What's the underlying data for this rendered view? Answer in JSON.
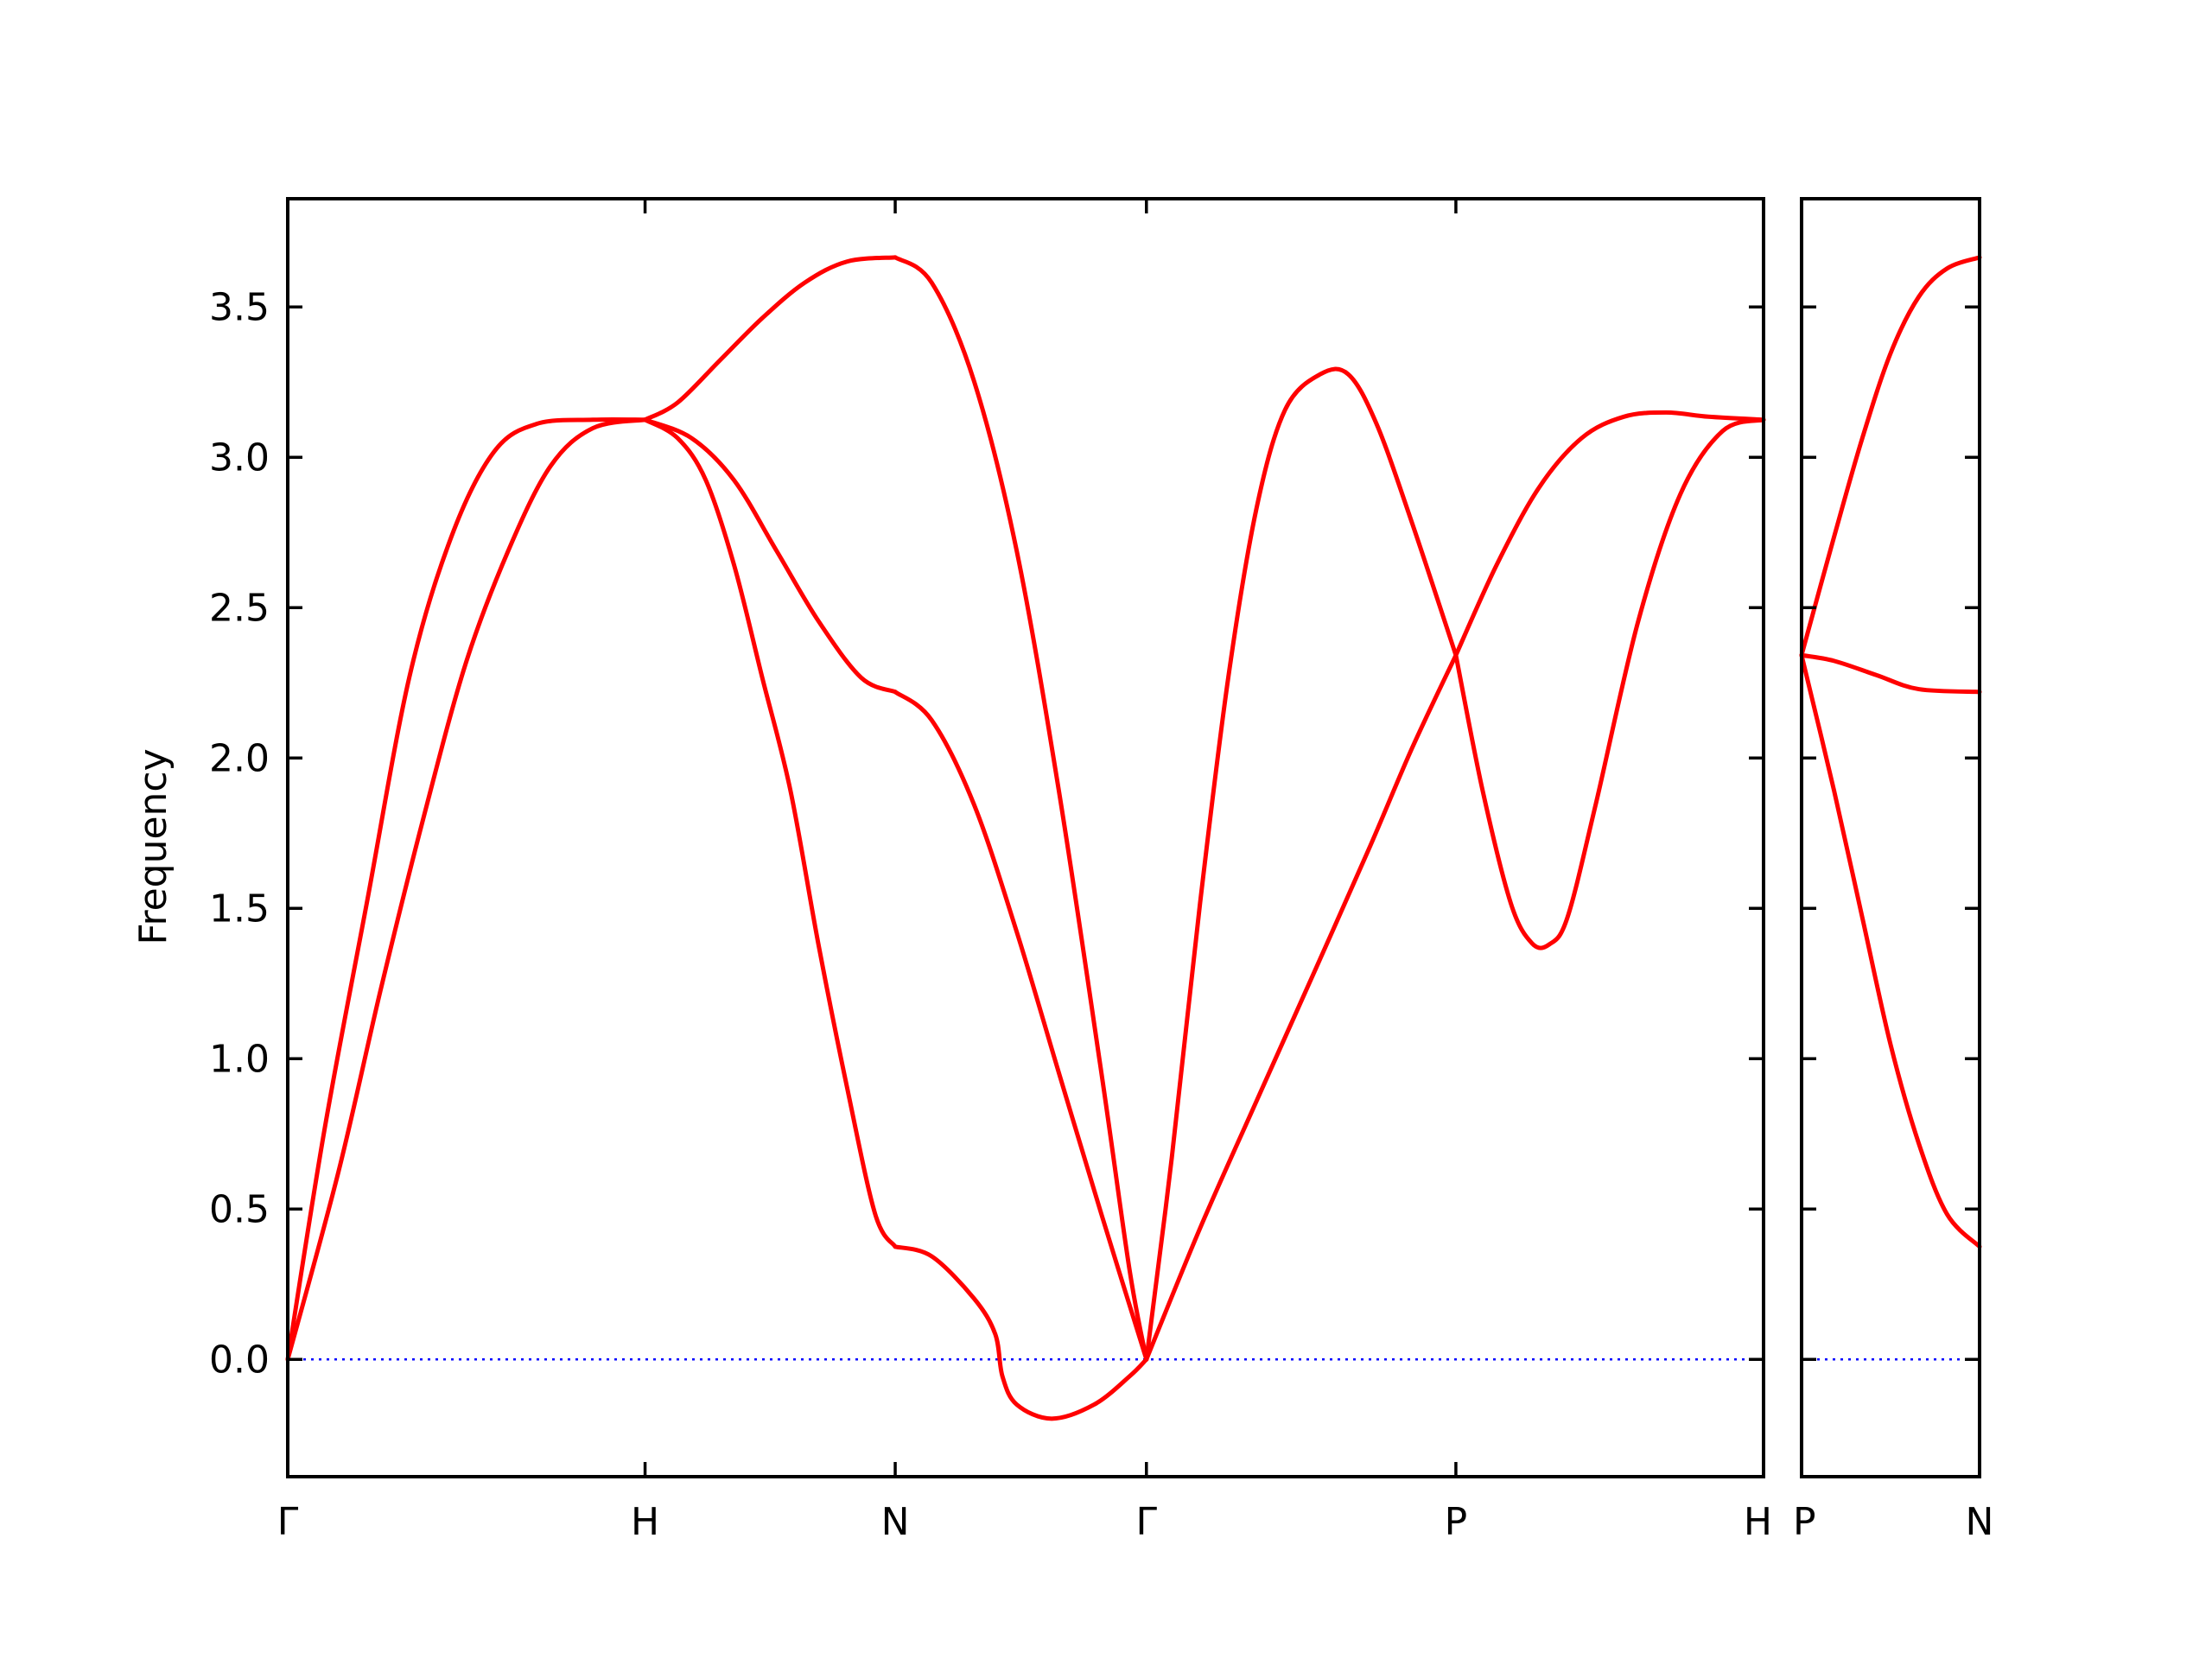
{
  "chart_data": {
    "type": "line",
    "ylabel": "Frequency",
    "ylim": [
      -0.39,
      3.86
    ],
    "yticks": [
      0.0,
      0.5,
      1.0,
      1.5,
      2.0,
      2.5,
      3.0,
      3.5
    ],
    "ytick_labels": [
      "0.0",
      "0.5",
      "1.0",
      "1.5",
      "2.0",
      "2.5",
      "3.0",
      "3.5"
    ],
    "zero_line_color": "#0000ff",
    "band_color": "#ff0000",
    "grid": false,
    "panels": [
      {
        "xlim": [
          0,
          4.13
        ],
        "xticks": [
          0,
          1.0,
          1.7,
          2.403,
          3.269,
          4.13
        ],
        "xtick_labels": [
          "Γ",
          "H",
          "N",
          "Γ",
          "P",
          "H"
        ],
        "segments": [
          [
            [
              0,
              0
            ],
            [
              0.103,
              0.765
            ],
            [
              0.221,
              1.516
            ],
            [
              0.34,
              2.267
            ],
            [
              0.458,
              2.736
            ],
            [
              0.577,
              3.018
            ],
            [
              0.696,
              3.111
            ],
            [
              0.854,
              3.125
            ],
            [
              1.0,
              3.125
            ]
          ],
          [
            [
              0,
              0
            ],
            [
              0.142,
              0.624
            ],
            [
              0.261,
              1.234
            ],
            [
              0.379,
              1.797
            ],
            [
              0.498,
              2.314
            ],
            [
              0.617,
              2.689
            ],
            [
              0.735,
              2.97
            ],
            [
              0.854,
              3.097
            ],
            [
              1.0,
              3.125
            ]
          ],
          [
            [
              1.0,
              3.125
            ],
            [
              1.091,
              3.182
            ],
            [
              1.209,
              3.322
            ],
            [
              1.328,
              3.463
            ],
            [
              1.447,
              3.581
            ],
            [
              1.565,
              3.651
            ],
            [
              1.7,
              3.665
            ]
          ],
          [
            [
              1.0,
              3.125
            ],
            [
              1.13,
              3.064
            ],
            [
              1.249,
              2.924
            ],
            [
              1.368,
              2.689
            ],
            [
              1.486,
              2.454
            ],
            [
              1.605,
              2.267
            ],
            [
              1.7,
              2.22
            ]
          ],
          [
            [
              1.0,
              3.125
            ],
            [
              1.091,
              3.064
            ],
            [
              1.17,
              2.924
            ],
            [
              1.249,
              2.642
            ],
            [
              1.328,
              2.267
            ],
            [
              1.407,
              1.891
            ],
            [
              1.486,
              1.375
            ],
            [
              1.565,
              0.906
            ],
            [
              1.644,
              0.483
            ],
            [
              1.7,
              0.375
            ]
          ],
          [
            [
              1.7,
              3.665
            ],
            [
              1.802,
              3.581
            ],
            [
              1.921,
              3.252
            ],
            [
              2.04,
              2.689
            ],
            [
              2.158,
              1.891
            ],
            [
              2.277,
              0.953
            ],
            [
              2.356,
              0.296
            ],
            [
              2.403,
              0
            ]
          ],
          [
            [
              1.7,
              2.22
            ],
            [
              1.802,
              2.126
            ],
            [
              1.921,
              1.844
            ],
            [
              2.04,
              1.422
            ],
            [
              2.158,
              0.953
            ],
            [
              2.277,
              0.483
            ],
            [
              2.403,
              0
            ]
          ],
          [
            [
              1.7,
              0.375
            ],
            [
              1.802,
              0.343
            ],
            [
              1.921,
              0.202
            ],
            [
              1.98,
              0.084
            ],
            [
              2.0,
              -0.056
            ],
            [
              2.04,
              -0.15
            ],
            [
              2.138,
              -0.197
            ],
            [
              2.257,
              -0.15
            ],
            [
              2.356,
              -0.056
            ],
            [
              2.403,
              0
            ]
          ],
          [
            [
              2.403,
              0
            ],
            [
              2.474,
              0.671
            ],
            [
              2.553,
              1.516
            ],
            [
              2.632,
              2.267
            ],
            [
              2.711,
              2.83
            ],
            [
              2.791,
              3.158
            ],
            [
              2.889,
              3.276
            ],
            [
              2.968,
              3.276
            ],
            [
              3.047,
              3.111
            ],
            [
              3.146,
              2.783
            ],
            [
              3.269,
              2.342
            ]
          ],
          [
            [
              2.403,
              0
            ],
            [
              2.553,
              0.436
            ],
            [
              2.711,
              0.859
            ],
            [
              2.87,
              1.281
            ],
            [
              3.028,
              1.704
            ],
            [
              3.146,
              2.032
            ],
            [
              3.269,
              2.342
            ]
          ],
          [
            [
              3.269,
              2.342
            ],
            [
              3.344,
              1.891
            ],
            [
              3.423,
              1.516
            ],
            [
              3.482,
              1.384
            ],
            [
              3.53,
              1.38
            ],
            [
              3.581,
              1.469
            ],
            [
              3.66,
              1.844
            ],
            [
              3.779,
              2.454
            ],
            [
              3.897,
              2.877
            ],
            [
              4.016,
              3.088
            ],
            [
              4.13,
              3.125
            ]
          ],
          [
            [
              3.269,
              2.342
            ],
            [
              3.383,
              2.642
            ],
            [
              3.502,
              2.9
            ],
            [
              3.621,
              3.064
            ],
            [
              3.739,
              3.135
            ],
            [
              3.858,
              3.149
            ],
            [
              3.976,
              3.135
            ],
            [
              4.13,
              3.125
            ]
          ]
        ]
      },
      {
        "xlim": [
          4.13,
          4.628
        ],
        "xticks": [
          4.13,
          4.628
        ],
        "xtick_labels": [
          "P",
          "N"
        ],
        "segments": [
          [
            [
              4.13,
              2.342
            ],
            [
              4.221,
              2.736
            ],
            [
              4.3,
              3.064
            ],
            [
              4.379,
              3.346
            ],
            [
              4.458,
              3.534
            ],
            [
              4.537,
              3.628
            ],
            [
              4.628,
              3.665
            ]
          ],
          [
            [
              4.13,
              2.342
            ],
            [
              4.221,
              2.323
            ],
            [
              4.339,
              2.276
            ],
            [
              4.458,
              2.229
            ],
            [
              4.628,
              2.22
            ]
          ],
          [
            [
              4.13,
              2.342
            ],
            [
              4.221,
              1.891
            ],
            [
              4.3,
              1.469
            ],
            [
              4.379,
              1.047
            ],
            [
              4.458,
              0.718
            ],
            [
              4.537,
              0.483
            ],
            [
              4.628,
              0.375
            ]
          ]
        ]
      }
    ]
  }
}
